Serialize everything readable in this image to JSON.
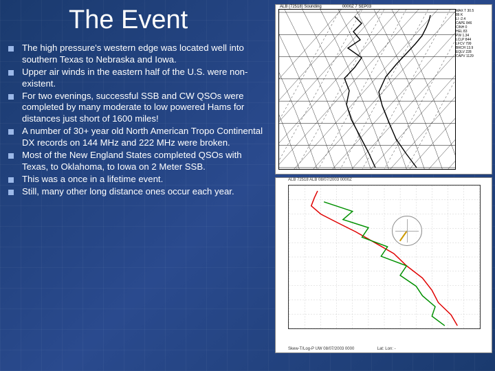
{
  "title": "The Event",
  "bullets": [
    "The high pressure's western edge was located well into southern Texas to Nebraska and Iowa.",
    "Upper air winds in the eastern half of the U.S. were non-existent.",
    "For two evenings, successful SSB and CW QSOs were completed by many moderate to low powered Hams for distances just short of 1600 miles!",
    "A number of 30+ year old North American Tropo Continental DX records on 144 MHz and 222 MHz were broken.",
    "Most of the New England States completed QSOs with Texas, to Oklahoma, to Iowa on 2 Meter SSB.",
    "This was a once in a lifetime event.",
    "Still, many other long distance ones occur each year."
  ],
  "colors": {
    "bg_grad_a": "#1a3a6e",
    "bg_grad_b": "#2a4a8e",
    "bullet_square": "#9bb8e8",
    "temp_line": "#e00000",
    "dew_line": "#009000"
  },
  "title_fontsize": 38,
  "body_fontsize": 13.2,
  "skewt_chart": {
    "type": "skew-t",
    "title_left": "ALB (72518) Sounding",
    "title_right": "0000Z  7 SEP03",
    "y_pressure_levels": [
      100,
      200,
      300,
      400,
      500,
      700,
      850,
      1000
    ],
    "x_temp_range": [
      -60,
      40
    ],
    "skew_line_count": 16,
    "adiabat_count": 10,
    "trace_T": [
      [
        200,
        230
      ],
      [
        185,
        210
      ],
      [
        170,
        188
      ],
      [
        160,
        165
      ],
      [
        150,
        140
      ],
      [
        145,
        120
      ],
      [
        155,
        98
      ],
      [
        170,
        80
      ],
      [
        185,
        64
      ],
      [
        198,
        50
      ],
      [
        208,
        38
      ],
      [
        214,
        26
      ],
      [
        218,
        16
      ],
      [
        220,
        8
      ]
    ],
    "trace_Td": [
      [
        140,
        230
      ],
      [
        130,
        208
      ],
      [
        118,
        185
      ],
      [
        105,
        160
      ],
      [
        98,
        138
      ],
      [
        102,
        118
      ],
      [
        95,
        100
      ],
      [
        110,
        84
      ],
      [
        120,
        70
      ],
      [
        100,
        56
      ],
      [
        118,
        44
      ],
      [
        108,
        32
      ],
      [
        120,
        20
      ],
      [
        110,
        10
      ]
    ],
    "side_labels": [
      "MAX T 30.5",
      "86 K",
      "LI -2.4",
      "CAPE 846",
      "CINH 0",
      "HEL 83",
      "PW 1.34",
      "LCLP 844",
      "LFCV 799",
      "BRCH 13.9",
      "EQLV 228",
      "CAPV 1129"
    ]
  },
  "sounding_chart": {
    "type": "line",
    "header": "ALB   72518   ALB   08/07/2003  0000Z",
    "footer_left": "Skew-T/Log-P   UW   08/07/2003  0000",
    "footer_right": "Lat:   Lon: -",
    "xlim": [
      -80,
      40
    ],
    "ylim_mb": [
      1000,
      100
    ],
    "grid_x_step": 10,
    "grid_y_levels": [
      1000,
      925,
      850,
      700,
      500,
      400,
      300,
      250,
      200,
      150,
      100
    ],
    "temp_T": [
      [
        26,
        206
      ],
      [
        22,
        190
      ],
      [
        14,
        172
      ],
      [
        10,
        154
      ],
      [
        4,
        136
      ],
      [
        -6,
        118
      ],
      [
        -14,
        100
      ],
      [
        -26,
        84
      ],
      [
        -38,
        68
      ],
      [
        -50,
        54
      ],
      [
        -60,
        42
      ],
      [
        -66,
        30
      ],
      [
        -64,
        18
      ],
      [
        -62,
        8
      ]
    ],
    "temp_Td": [
      [
        18,
        206
      ],
      [
        10,
        192
      ],
      [
        12,
        178
      ],
      [
        4,
        162
      ],
      [
        0,
        148
      ],
      [
        -10,
        132
      ],
      [
        -6,
        118
      ],
      [
        -22,
        104
      ],
      [
        -18,
        90
      ],
      [
        -34,
        76
      ],
      [
        -30,
        62
      ],
      [
        -46,
        50
      ],
      [
        -40,
        38
      ],
      [
        -58,
        24
      ]
    ]
  }
}
